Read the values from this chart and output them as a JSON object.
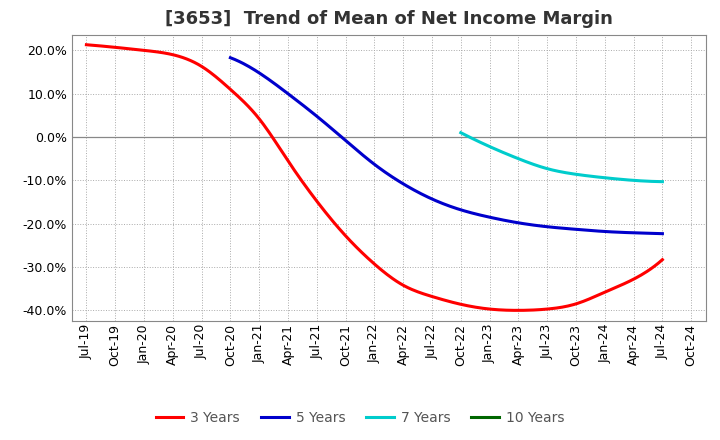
{
  "title": "[3653]  Trend of Mean of Net Income Margin",
  "background_color": "#ffffff",
  "grid_color": "#aaaaaa",
  "x_labels": [
    "Jul-19",
    "Oct-19",
    "Jan-20",
    "Apr-20",
    "Jul-20",
    "Oct-20",
    "Jan-21",
    "Apr-21",
    "Jul-21",
    "Oct-21",
    "Jan-22",
    "Apr-22",
    "Jul-22",
    "Oct-22",
    "Jan-23",
    "Apr-23",
    "Jul-23",
    "Oct-23",
    "Jan-24",
    "Apr-24",
    "Jul-24",
    "Oct-24"
  ],
  "y_ticks": [
    -0.4,
    -0.3,
    -0.2,
    -0.1,
    0.0,
    0.1,
    0.2
  ],
  "ylim": [
    -0.425,
    0.235
  ],
  "xlim": [
    -0.5,
    21.5
  ],
  "series": {
    "3 Years": {
      "color": "#ff0000",
      "values": [
        0.213,
        0.207,
        0.2,
        0.19,
        0.163,
        0.11,
        0.042,
        -0.055,
        -0.148,
        -0.228,
        -0.293,
        -0.342,
        -0.368,
        -0.386,
        -0.397,
        -0.4,
        -0.397,
        -0.385,
        -0.358,
        -0.328,
        -0.283,
        null
      ]
    },
    "5 Years": {
      "color": "#0000cc",
      "values": [
        null,
        null,
        null,
        null,
        null,
        0.183,
        0.148,
        0.1,
        0.048,
        -0.008,
        -0.063,
        -0.108,
        -0.143,
        -0.168,
        -0.185,
        -0.198,
        -0.207,
        -0.213,
        -0.218,
        -0.221,
        -0.223,
        null
      ]
    },
    "7 Years": {
      "color": "#00cccc",
      "values": [
        null,
        null,
        null,
        null,
        null,
        null,
        null,
        null,
        null,
        null,
        null,
        null,
        null,
        0.01,
        -0.022,
        -0.05,
        -0.073,
        -0.086,
        -0.094,
        -0.1,
        -0.103,
        null
      ]
    },
    "10 Years": {
      "color": "#006600",
      "values": [
        null,
        null,
        null,
        null,
        null,
        null,
        null,
        null,
        null,
        null,
        null,
        null,
        null,
        null,
        null,
        null,
        null,
        null,
        null,
        null,
        null,
        null
      ]
    }
  },
  "legend_order": [
    "3 Years",
    "5 Years",
    "7 Years",
    "10 Years"
  ],
  "legend_colors": [
    "#ff0000",
    "#0000cc",
    "#00cccc",
    "#006600"
  ],
  "title_fontsize": 13,
  "tick_fontsize": 9,
  "legend_fontsize": 10,
  "linewidth": 2.2
}
